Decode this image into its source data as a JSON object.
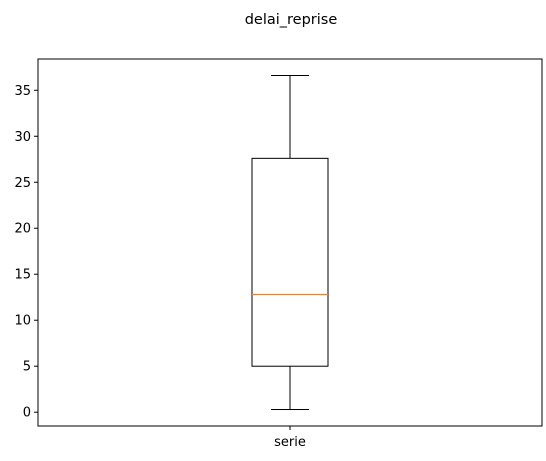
{
  "chart_data": {
    "type": "box",
    "title": "delai_reprise",
    "xlabel": "",
    "ylabel": "",
    "categories": [
      "serie"
    ],
    "series": [
      {
        "whisker_low": 0.3,
        "q1": 5.0,
        "median": 12.8,
        "q3": 27.6,
        "whisker_high": 36.6
      }
    ],
    "ylim": [
      -1.5,
      38.4
    ],
    "yticks": [
      0,
      5,
      10,
      15,
      20,
      25,
      30,
      35
    ],
    "grid": false,
    "legend": "none",
    "colors": {
      "box": "#000000",
      "median": "#ff7f0e",
      "axes": "#000000"
    }
  }
}
